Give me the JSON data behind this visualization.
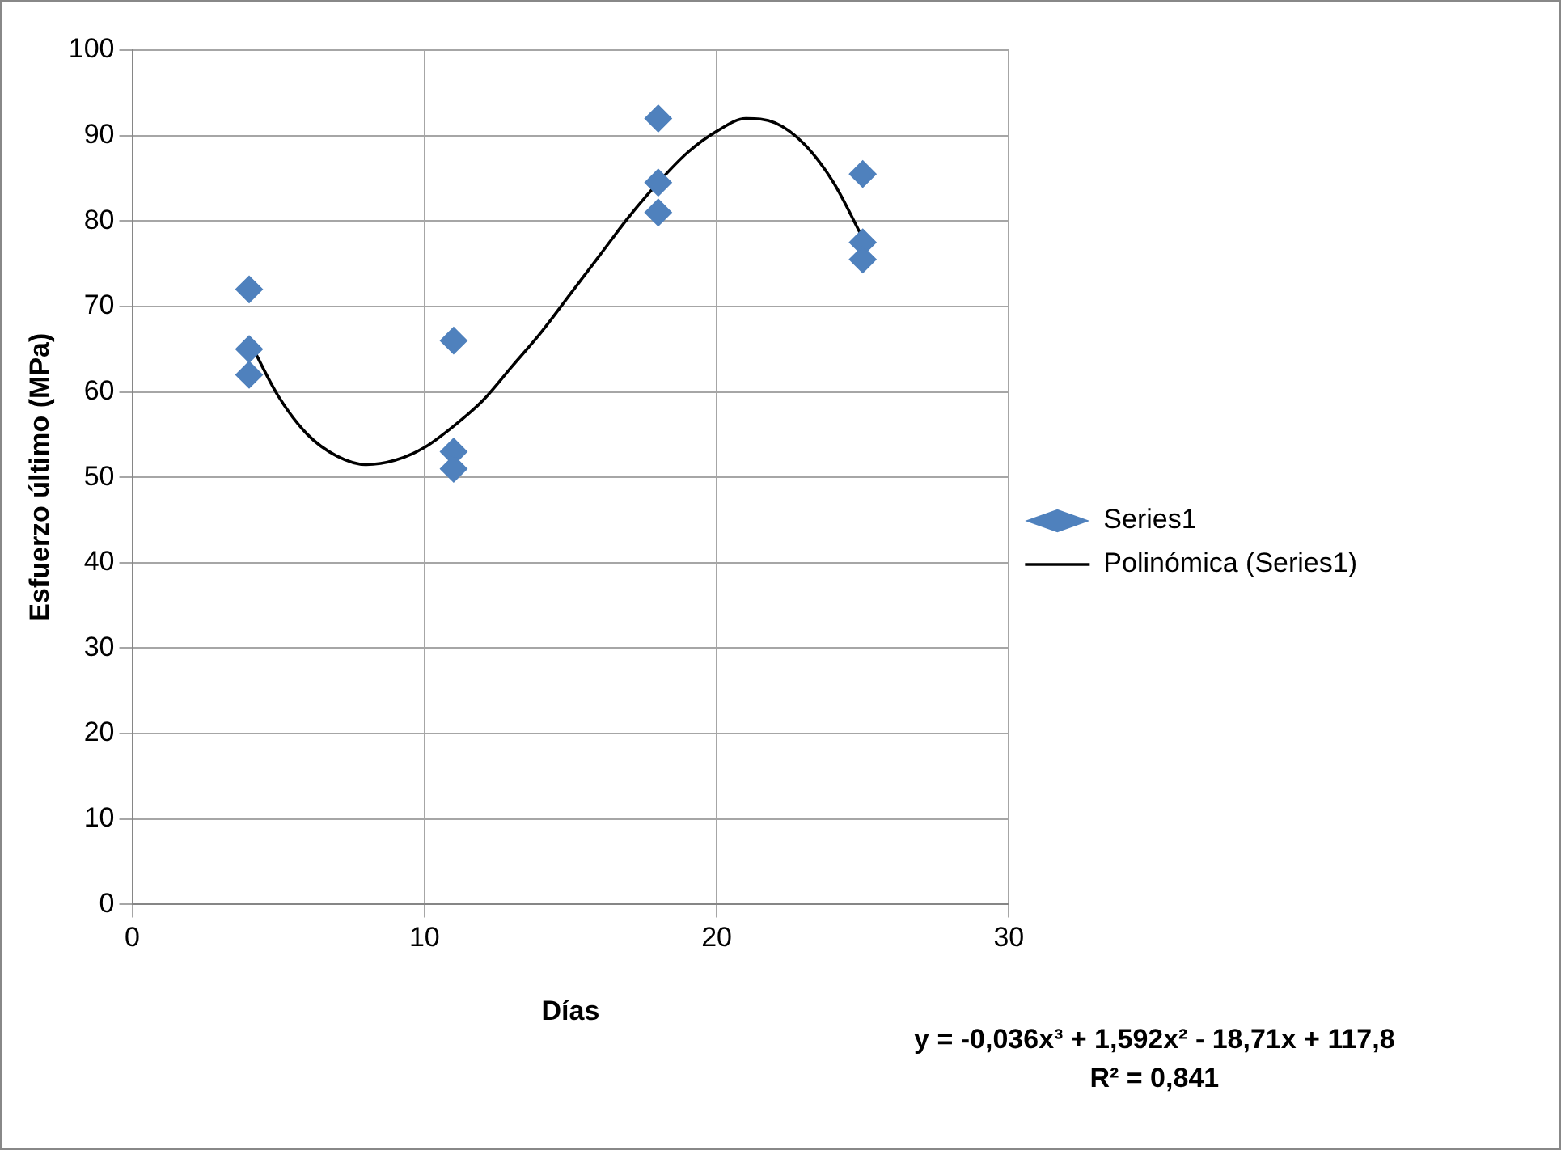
{
  "chart_data": {
    "type": "scatter",
    "xlabel": "Días",
    "ylabel": "Esfuerzo último (MPa)",
    "xlim": [
      0,
      30
    ],
    "xticks": [
      0,
      10,
      20,
      30
    ],
    "ylim": [
      0,
      100
    ],
    "yticks": [
      0,
      10,
      20,
      30,
      40,
      50,
      60,
      70,
      80,
      90,
      100
    ],
    "grid": true,
    "legend": "right",
    "marker": "diamond",
    "series": [
      {
        "name": "Series1",
        "color": "#4f81bd",
        "x": [
          4,
          4,
          4,
          11,
          11,
          11,
          18,
          18,
          18,
          25,
          25,
          25
        ],
        "values": [
          72,
          65,
          62,
          66,
          53,
          51,
          92,
          84.5,
          81,
          85.5,
          77.5,
          75.5
        ]
      },
      {
        "name": "Polinómica (Series1)",
        "type": "line",
        "color": "#000000",
        "marker": "none",
        "x": [
          4,
          5,
          6,
          7,
          8,
          9,
          10,
          11,
          12,
          13,
          14,
          15,
          16,
          17,
          18,
          19,
          20,
          21,
          22,
          23,
          24,
          25
        ],
        "values": [
          66,
          59.5,
          55,
          52.5,
          51.5,
          52,
          53.5,
          56,
          59,
          63,
          67,
          71.5,
          76,
          80.5,
          84.5,
          88,
          90.5,
          92,
          91.5,
          89,
          84.5,
          78
        ]
      }
    ],
    "annotations": [
      "y = -0,036x³ + 1,592x² - 18,71x + 117,8",
      "R² = 0,841"
    ]
  }
}
